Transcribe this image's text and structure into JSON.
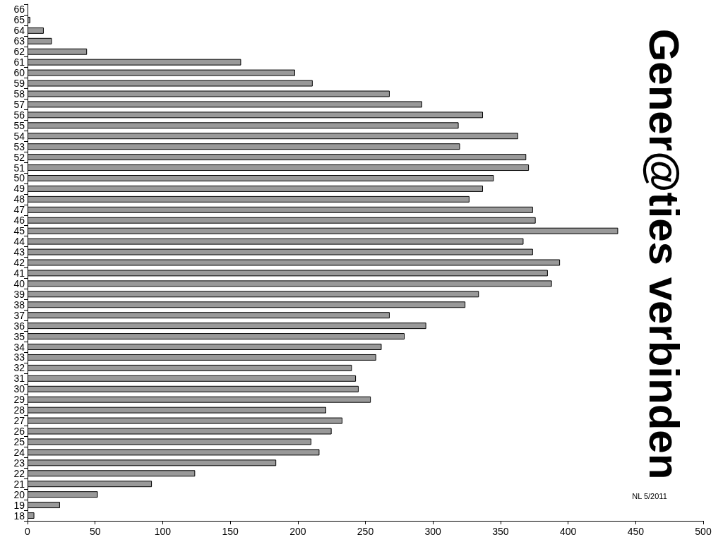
{
  "chart_data": {
    "type": "bar",
    "orientation": "horizontal",
    "title": "Gener@ties verbinden",
    "annotations": [
      "NL 5/2011"
    ],
    "categories": [
      "66",
      "65",
      "64",
      "63",
      "62",
      "61",
      "60",
      "59",
      "58",
      "57",
      "56",
      "55",
      "54",
      "53",
      "52",
      "51",
      "50",
      "49",
      "48",
      "47",
      "46",
      "45",
      "44",
      "43",
      "42",
      "41",
      "40",
      "39",
      "38",
      "37",
      "36",
      "35",
      "34",
      "33",
      "32",
      "31",
      "30",
      "29",
      "28",
      "27",
      "26",
      "25",
      "24",
      "23",
      "22",
      "21",
      "20",
      "19",
      "18"
    ],
    "values": [
      null,
      2,
      12,
      18,
      44,
      158,
      198,
      211,
      268,
      292,
      337,
      319,
      363,
      320,
      369,
      371,
      345,
      337,
      327,
      374,
      376,
      437,
      367,
      374,
      394,
      385,
      388,
      334,
      324,
      268,
      295,
      279,
      262,
      258,
      240,
      243,
      245,
      254,
      221,
      233,
      225,
      210,
      216,
      184,
      124,
      92,
      52,
      24,
      5
    ],
    "color": "#999999",
    "xlim": [
      0,
      500
    ],
    "xticks": [
      0,
      50,
      100,
      150,
      200,
      250,
      300,
      350,
      400,
      450,
      500
    ],
    "grid": false
  }
}
